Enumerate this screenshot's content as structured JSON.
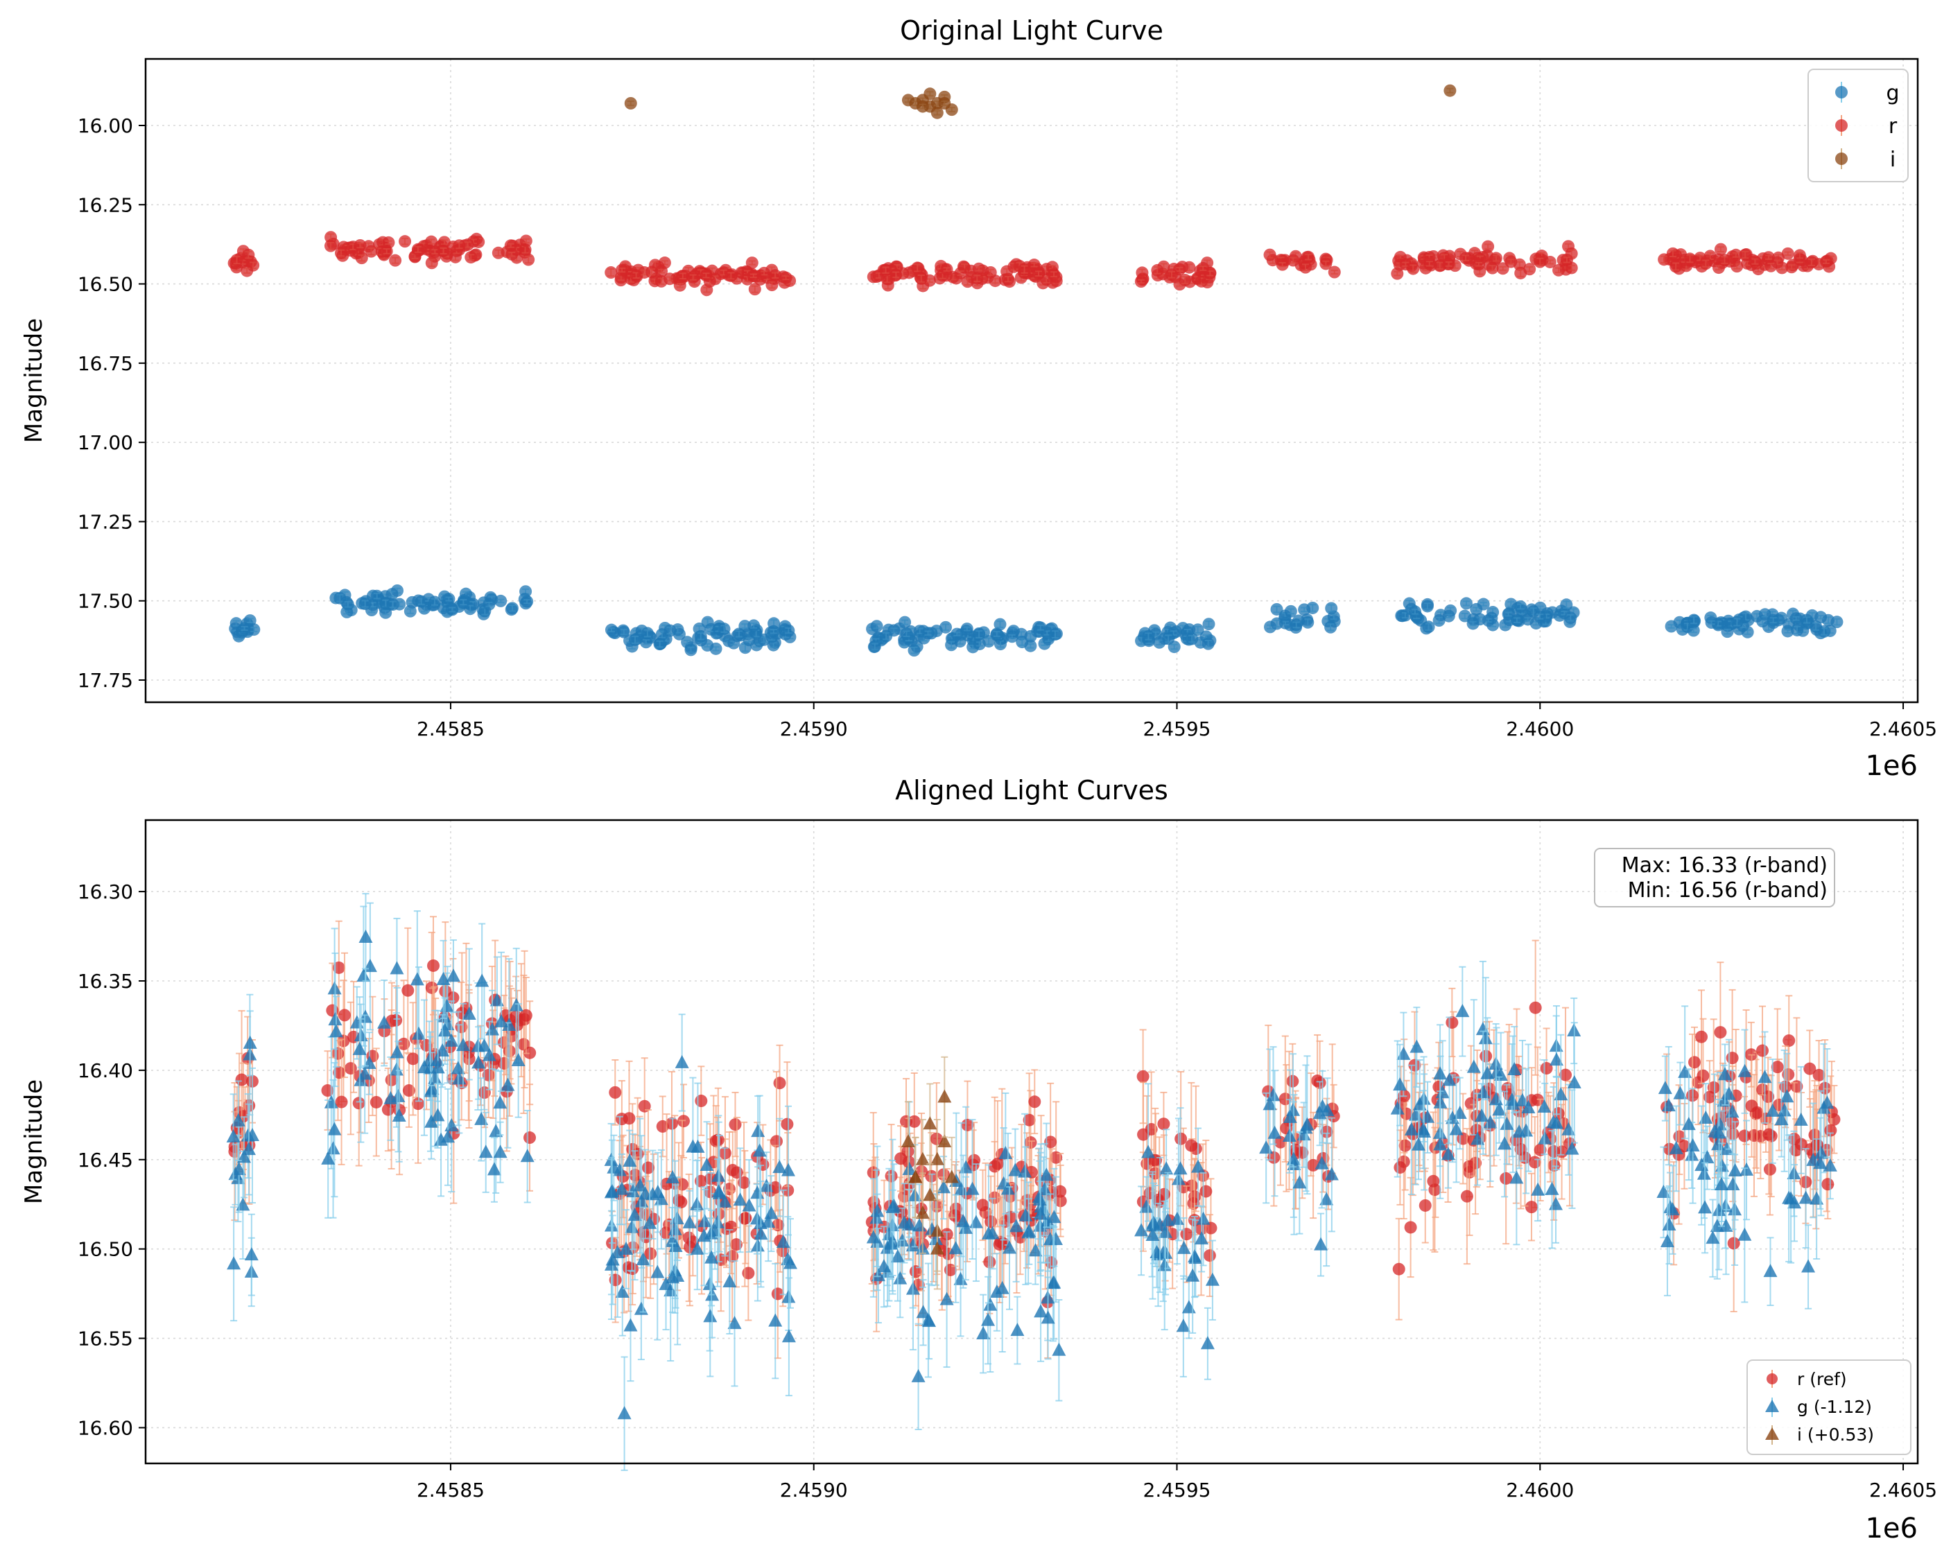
{
  "chart_data": [
    {
      "type": "scatter",
      "title": "Original Light Curve",
      "xlabel": "",
      "ylabel": "Magnitude",
      "x_offset_label": "1e6",
      "xlim": [
        2.45808,
        2.46052
      ],
      "ylim": [
        17.82,
        15.79
      ],
      "y_inverted": true,
      "grid": true,
      "xticks": [
        2.4585,
        2.459,
        2.4595,
        2.46,
        2.4605
      ],
      "xtick_labels": [
        "2.4585",
        "2.4590",
        "2.4595",
        "2.4600",
        "2.4605"
      ],
      "yticks": [
        16.0,
        16.25,
        16.5,
        16.75,
        17.0,
        17.25,
        17.5,
        17.75
      ],
      "ytick_labels": [
        "16.00",
        "16.25",
        "16.50",
        "16.75",
        "17.00",
        "17.25",
        "17.50",
        "17.75"
      ],
      "legend": {
        "placement": "top-right",
        "entries": [
          "g",
          "r",
          "i"
        ]
      },
      "series": [
        {
          "name": "g",
          "color": "#1f77b4",
          "marker": "circle",
          "err_color": "#87ceeb",
          "segments": [
            {
              "x": [
                2.4582,
                2.45823
              ],
              "base": 17.59,
              "n": 12
            },
            {
              "x": [
                2.45833,
                2.45861
              ],
              "base": 17.51,
              "n": 70
            },
            {
              "x": [
                2.45872,
                2.45897
              ],
              "base": 17.61,
              "n": 75
            },
            {
              "x": [
                2.45908,
                2.45934
              ],
              "base": 17.61,
              "n": 75
            },
            {
              "x": [
                2.45945,
                2.45955
              ],
              "base": 17.61,
              "n": 30
            },
            {
              "x": [
                2.45962,
                2.45972
              ],
              "base": 17.56,
              "n": 20
            },
            {
              "x": [
                2.4598,
                2.46005
              ],
              "base": 17.54,
              "n": 60
            },
            {
              "x": [
                2.46017,
                2.46041
              ],
              "base": 17.57,
              "n": 60
            }
          ]
        },
        {
          "name": "r",
          "color": "#d62728",
          "marker": "circle",
          "err_color": "#f4a582",
          "segments": [
            {
              "x": [
                2.4582,
                2.45823
              ],
              "base": 16.43,
              "n": 12
            },
            {
              "x": [
                2.45833,
                2.45861
              ],
              "base": 16.39,
              "n": 75
            },
            {
              "x": [
                2.45872,
                2.45897
              ],
              "base": 16.47,
              "n": 80
            },
            {
              "x": [
                2.45908,
                2.45934
              ],
              "base": 16.47,
              "n": 85
            },
            {
              "x": [
                2.45945,
                2.45955
              ],
              "base": 16.47,
              "n": 30
            },
            {
              "x": [
                2.45962,
                2.45972
              ],
              "base": 16.43,
              "n": 20
            },
            {
              "x": [
                2.4598,
                2.46005
              ],
              "base": 16.43,
              "n": 65
            },
            {
              "x": [
                2.46017,
                2.46041
              ],
              "base": 16.43,
              "n": 65
            }
          ]
        },
        {
          "name": "i",
          "color": "#8b4513",
          "marker": "circle",
          "err_color": "#d2b48c",
          "points": [
            [
              2.458748,
              15.93
            ],
            [
              2.45913,
              15.92
            ],
            [
              2.45914,
              15.93
            ],
            [
              2.45915,
              15.92
            ],
            [
              2.45916,
              15.94
            ],
            [
              2.45917,
              15.93
            ],
            [
              2.45918,
              15.91
            ],
            [
              2.45919,
              15.95
            ],
            [
              2.45917,
              15.96
            ],
            [
              2.45916,
              15.9
            ],
            [
              2.45918,
              15.93
            ],
            [
              2.45915,
              15.94
            ],
            [
              2.459876,
              15.89
            ]
          ]
        }
      ]
    },
    {
      "type": "scatter",
      "title": "Aligned Light Curves",
      "xlabel": "",
      "ylabel": "Magnitude",
      "x_offset_label": "1e6",
      "xlim": [
        2.45808,
        2.46052
      ],
      "ylim": [
        16.62,
        16.26
      ],
      "y_inverted": true,
      "grid": true,
      "xticks": [
        2.4585,
        2.459,
        2.4595,
        2.46,
        2.4605
      ],
      "xtick_labels": [
        "2.4585",
        "2.4590",
        "2.4595",
        "2.4600",
        "2.4605"
      ],
      "yticks": [
        16.3,
        16.35,
        16.4,
        16.45,
        16.5,
        16.55,
        16.6
      ],
      "ytick_labels": [
        "16.30",
        "16.35",
        "16.40",
        "16.45",
        "16.50",
        "16.55",
        "16.60"
      ],
      "annotation": {
        "line1": "Max: 16.33 (r-band)",
        "line2": "Min: 16.56 (r-band)"
      },
      "legend": {
        "placement": "bottom-right",
        "entries": [
          "r (ref)",
          "g (-1.12)",
          "i (+0.53)"
        ]
      },
      "series": [
        {
          "name": "r (ref)",
          "color": "#d62728",
          "marker": "circle",
          "err_color": "#f4a582",
          "segments": [
            {
              "x": [
                2.4582,
                2.45823
              ],
              "base": 16.43,
              "n": 12,
              "spread": 0.03
            },
            {
              "x": [
                2.45833,
                2.45861
              ],
              "base": 16.39,
              "n": 70,
              "spread": 0.04
            },
            {
              "x": [
                2.45872,
                2.45897
              ],
              "base": 16.47,
              "n": 80,
              "spread": 0.05
            },
            {
              "x": [
                2.45908,
                2.45934
              ],
              "base": 16.47,
              "n": 85,
              "spread": 0.05
            },
            {
              "x": [
                2.45945,
                2.45955
              ],
              "base": 16.47,
              "n": 30,
              "spread": 0.04
            },
            {
              "x": [
                2.45962,
                2.45972
              ],
              "base": 16.43,
              "n": 20,
              "spread": 0.04
            },
            {
              "x": [
                2.4598,
                2.46005
              ],
              "base": 16.43,
              "n": 65,
              "spread": 0.05
            },
            {
              "x": [
                2.46017,
                2.46041
              ],
              "base": 16.43,
              "n": 65,
              "spread": 0.04
            }
          ]
        },
        {
          "name": "g (-1.12)",
          "color": "#1f77b4",
          "marker": "triangle",
          "err_color": "#87ceeb",
          "segments": [
            {
              "x": [
                2.4582,
                2.45823
              ],
              "base": 16.46,
              "n": 15,
              "spread": 0.08
            },
            {
              "x": [
                2.45833,
                2.45861
              ],
              "base": 16.39,
              "n": 70,
              "spread": 0.06
            },
            {
              "x": [
                2.45872,
                2.45897
              ],
              "base": 16.49,
              "n": 80,
              "spread": 0.06
            },
            {
              "x": [
                2.45908,
                2.45934
              ],
              "base": 16.49,
              "n": 80,
              "spread": 0.06
            },
            {
              "x": [
                2.45945,
                2.45955
              ],
              "base": 16.49,
              "n": 30,
              "spread": 0.05
            },
            {
              "x": [
                2.45962,
                2.45972
              ],
              "base": 16.44,
              "n": 20,
              "spread": 0.05
            },
            {
              "x": [
                2.4598,
                2.46005
              ],
              "base": 16.42,
              "n": 60,
              "spread": 0.05
            },
            {
              "x": [
                2.46017,
                2.46041
              ],
              "base": 16.45,
              "n": 60,
              "spread": 0.05
            }
          ]
        },
        {
          "name": "i (+0.53)",
          "color": "#8b4513",
          "marker": "triangle",
          "err_color": "#d2b48c",
          "points": [
            [
              2.45913,
              16.44
            ],
            [
              2.45914,
              16.46
            ],
            [
              2.45915,
              16.45
            ],
            [
              2.45916,
              16.47
            ],
            [
              2.45917,
              16.45
            ],
            [
              2.45918,
              16.44
            ],
            [
              2.45919,
              16.46
            ],
            [
              2.45917,
              16.49
            ],
            [
              2.45916,
              16.43
            ],
            [
              2.45918,
              16.415
            ],
            [
              2.45915,
              16.48
            ],
            [
              2.45917,
              16.5
            ],
            [
              2.45914,
              16.46
            ]
          ]
        }
      ]
    }
  ]
}
